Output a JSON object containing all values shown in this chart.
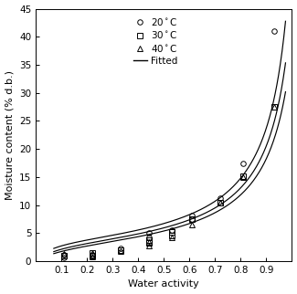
{
  "title": "",
  "xlabel": "Water activity",
  "ylabel": "Moisture content (% d.b.)",
  "xlim": [
    0.0,
    1.0
  ],
  "ylim": [
    0,
    45
  ],
  "xticks": [
    0.1,
    0.2,
    0.3,
    0.4,
    0.5,
    0.6,
    0.7,
    0.8,
    0.9
  ],
  "yticks": [
    0,
    5,
    10,
    15,
    20,
    25,
    30,
    35,
    40,
    45
  ],
  "data_20C": {
    "aw": [
      0.11,
      0.11,
      0.22,
      0.22,
      0.33,
      0.44,
      0.44,
      0.53,
      0.61,
      0.61,
      0.72,
      0.81,
      0.93
    ],
    "mc": [
      1.1,
      0.7,
      1.2,
      1.0,
      2.3,
      5.0,
      4.2,
      5.5,
      8.1,
      7.5,
      11.2,
      17.5,
      41.0
    ]
  },
  "data_30C": {
    "aw": [
      0.11,
      0.22,
      0.22,
      0.33,
      0.44,
      0.44,
      0.53,
      0.53,
      0.61,
      0.72,
      0.81,
      0.93
    ],
    "mc": [
      0.9,
      1.4,
      1.0,
      2.0,
      3.8,
      3.2,
      4.5,
      5.2,
      7.5,
      10.5,
      15.2,
      27.5
    ]
  },
  "data_40C": {
    "aw": [
      0.11,
      0.22,
      0.22,
      0.33,
      0.44,
      0.44,
      0.53,
      0.61,
      0.72,
      0.81,
      0.93
    ],
    "mc": [
      1.3,
      1.5,
      0.8,
      1.8,
      3.5,
      2.8,
      4.2,
      6.5,
      10.5,
      15.0,
      27.5
    ]
  },
  "gab_20C": [
    3.8,
    18.0,
    0.935
  ],
  "gab_30C": [
    3.5,
    12.0,
    0.925
  ],
  "gab_40C": [
    3.3,
    9.0,
    0.915
  ],
  "line_color": "#000000",
  "marker_color": "#000000",
  "background_color": "#ffffff",
  "legend_fontsize": 7.5,
  "axis_fontsize": 8,
  "tick_fontsize": 7.5
}
